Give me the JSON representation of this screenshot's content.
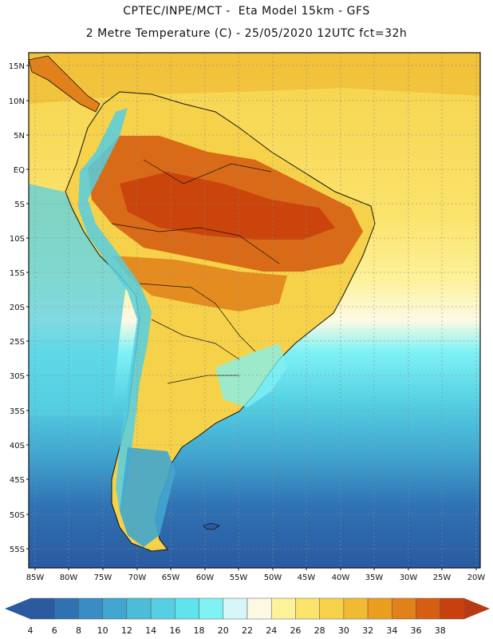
{
  "header": {
    "line1": "CPTEC/INPE/MCT -  Eta Model 15km - GFS",
    "line2": "2 Metre Temperature (C) - 25/05/2020 12UTC fct=32h"
  },
  "map": {
    "lat_labels": [
      "15N",
      "10N",
      "5N",
      "EQ",
      "5S",
      "10S",
      "15S",
      "20S",
      "25S",
      "30S",
      "35S",
      "40S",
      "45S",
      "50S",
      "55S"
    ],
    "lon_labels": [
      "85W",
      "80W",
      "75W",
      "70W",
      "65W",
      "60W",
      "55W",
      "50W",
      "45W",
      "40W",
      "35W",
      "30W",
      "25W",
      "20W"
    ]
  },
  "legend": {
    "values": [
      "4",
      "6",
      "8",
      "10",
      "12",
      "14",
      "16",
      "18",
      "20",
      "22",
      "24",
      "26",
      "28",
      "30",
      "32",
      "34",
      "36",
      "38"
    ],
    "colors": [
      "#2a5aa0",
      "#2f72b4",
      "#3a8cc4",
      "#41a6cf",
      "#4cbcd9",
      "#55cfe2",
      "#5fe3ec",
      "#7ff2f5",
      "#d6f6f8",
      "#fdf9e4",
      "#fdf29a",
      "#fbe36c",
      "#f6d24a",
      "#f0bb33",
      "#eb9e1e",
      "#e2801a",
      "#d65e12",
      "#c8400b"
    ],
    "low_color": "#2a5aa0",
    "high_color": "#b63a12"
  }
}
